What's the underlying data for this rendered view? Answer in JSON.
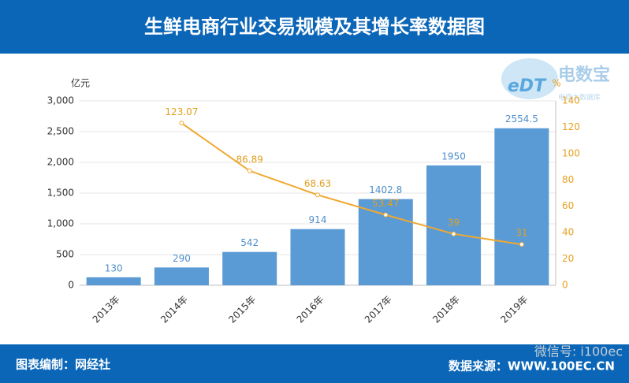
{
  "header": {
    "title": "生鲜电商行业交易规模及其增长率数据图"
  },
  "chart_data": {
    "type": "bar",
    "y_label": "亿元",
    "y2_label": "%",
    "categories": [
      "2013年",
      "2014年",
      "2015年",
      "2016年",
      "2017年",
      "2018年",
      "2019年"
    ],
    "series": [
      {
        "type": "bar",
        "color": "#5b9bd5",
        "values": [
          130,
          290,
          542,
          914,
          1402.8,
          1950,
          2554.5
        ]
      },
      {
        "type": "line",
        "color": "#f0a830",
        "axis": "y2",
        "values": [
          null,
          123.07,
          86.89,
          68.63,
          53.47,
          39,
          31
        ]
      }
    ],
    "ylim": [
      0,
      3000
    ],
    "yticks": [
      0,
      500,
      {
        "value": 1000,
        "label": "1,000"
      },
      {
        "value": 1500,
        "label": "1,500"
      },
      {
        "value": 2000,
        "label": "2,000"
      },
      {
        "value": 2500,
        "label": "2,500"
      },
      {
        "value": 3000,
        "label": "3,000"
      }
    ],
    "y2lim": [
      0,
      140
    ],
    "y2ticks": [
      0,
      20,
      40,
      60,
      80,
      100,
      120,
      140
    ],
    "grid": true
  },
  "footer": {
    "left": "图表编制：网经社",
    "right": "数据来源：WWW.100EC.CN"
  },
  "watermark": {
    "logo_mark": "eDT",
    "logo": "电数宝",
    "logo_sub": "电商大数据库",
    "wechat": "微信号: i100ec"
  }
}
